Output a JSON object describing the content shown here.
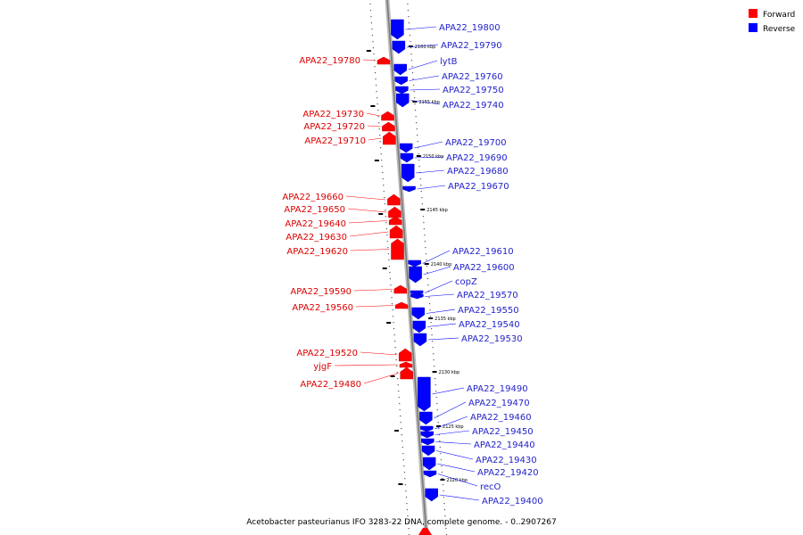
{
  "colors": {
    "forward": "#ff0000",
    "reverse": "#0000ff",
    "forward_label": "#dd0000",
    "reverse_label": "#2222cc"
  },
  "legend": {
    "forward": "Forward",
    "reverse": "Reverse"
  },
  "caption": "Acetobacter pasteurianus IFO 3283-22 DNA, complete genome. - 0..2907267",
  "scale_marks": [
    "2160 kbp",
    "2155 kbp",
    "2150 kbp",
    "2145 kbp",
    "2140 kbp",
    "2135 kbp",
    "2130 kbp",
    "2125 kbp",
    "2120 kbp"
  ],
  "genes_reverse": [
    "APA22_19800",
    "APA22_19790",
    "lytB",
    "APA22_19760",
    "APA22_19750",
    "APA22_19740",
    "APA22_19700",
    "APA22_19690",
    "APA22_19680",
    "APA22_19670",
    "APA22_19610",
    "APA22_19600",
    "copZ",
    "APA22_19570",
    "APA22_19550",
    "APA22_19540",
    "APA22_19530",
    "APA22_19490",
    "APA22_19470",
    "APA22_19460",
    "APA22_19450",
    "APA22_19440",
    "APA22_19430",
    "APA22_19420",
    "recO",
    "APA22_19400"
  ],
  "genes_forward": [
    "APA22_19780",
    "APA22_19730",
    "APA22_19720",
    "APA22_19710",
    "APA22_19660",
    "APA22_19650",
    "APA22_19640",
    "APA22_19630",
    "APA22_19620",
    "APA22_19590",
    "APA22_19560",
    "APA22_19520",
    "yjgF",
    "APA22_19480"
  ]
}
